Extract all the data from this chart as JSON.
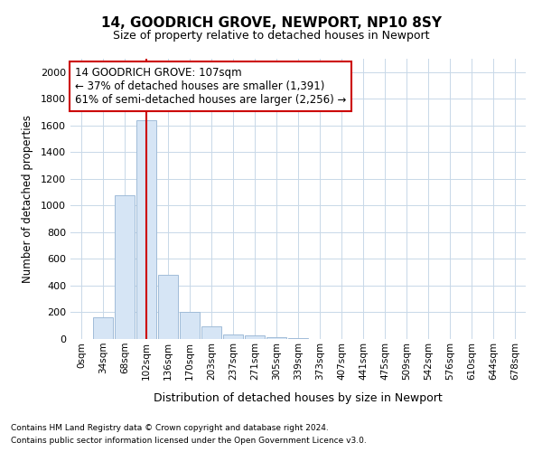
{
  "title1": "14, GOODRICH GROVE, NEWPORT, NP10 8SY",
  "title2": "Size of property relative to detached houses in Newport",
  "xlabel": "Distribution of detached houses by size in Newport",
  "ylabel": "Number of detached properties",
  "categories": [
    "0sqm",
    "34sqm",
    "68sqm",
    "102sqm",
    "136sqm",
    "170sqm",
    "203sqm",
    "237sqm",
    "271sqm",
    "305sqm",
    "339sqm",
    "373sqm",
    "407sqm",
    "441sqm",
    "475sqm",
    "509sqm",
    "542sqm",
    "576sqm",
    "610sqm",
    "644sqm",
    "678sqm"
  ],
  "values": [
    0,
    165,
    1080,
    1640,
    480,
    200,
    95,
    35,
    25,
    15,
    5,
    0,
    0,
    0,
    0,
    0,
    0,
    0,
    0,
    0,
    0
  ],
  "bar_color": "#d6e5f5",
  "bar_edge_color": "#a0bcd8",
  "vline_x_index": 3,
  "vline_color": "#cc0000",
  "annotation_text": "14 GOODRICH GROVE: 107sqm\n← 37% of detached houses are smaller (1,391)\n61% of semi-detached houses are larger (2,256) →",
  "annotation_box_color": "white",
  "annotation_box_edge": "#cc0000",
  "ylim": [
    0,
    2100
  ],
  "yticks": [
    0,
    200,
    400,
    600,
    800,
    1000,
    1200,
    1400,
    1600,
    1800,
    2000
  ],
  "footer1": "Contains HM Land Registry data © Crown copyright and database right 2024.",
  "footer2": "Contains public sector information licensed under the Open Government Licence v3.0.",
  "bg_color": "#ffffff",
  "grid_color": "#c8d8e8"
}
